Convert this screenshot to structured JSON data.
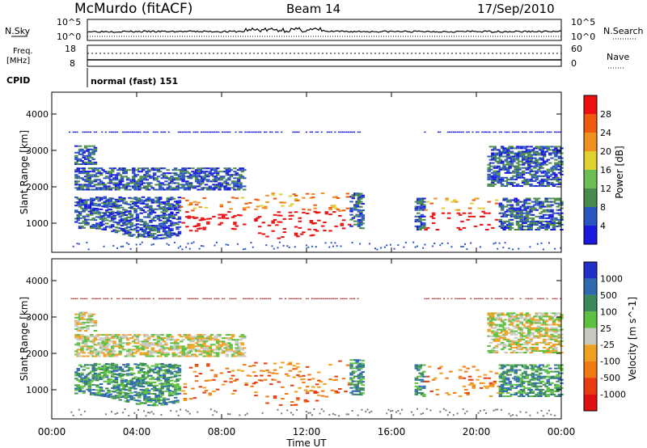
{
  "header": {
    "station": "McMurdo (fitACF)",
    "beam": "Beam 14",
    "date": "17/Sep/2010"
  },
  "status_panel": {
    "nsky_label": "N.Sky",
    "nsearch_label": "N.Search",
    "nsky_tick_high": "10^5",
    "nsky_tick_low": "10^0",
    "freq_label_line1": "Freq.",
    "freq_label_line2": "[MHz]",
    "freq_ticks": [
      "18",
      "8"
    ],
    "nave_label": "Nave",
    "nave_ticks": [
      "60",
      "0"
    ],
    "cpid_label": "CPID",
    "cpid_value": "normal (fast) 151"
  },
  "colors": {
    "power_scale": [
      "#1a1adf",
      "#2a55c0",
      "#4a8a4a",
      "#6bbf50",
      "#e0d030",
      "#f09020",
      "#f05a10",
      "#ee1010"
    ],
    "velocity_scale": [
      "#2030c8",
      "#2e6ab0",
      "#3c8a5a",
      "#5cc040",
      "#c8c8c0",
      "#f0a020",
      "#f07a10",
      "#e83c10",
      "#e01010"
    ]
  },
  "chart_data": [
    {
      "type": "heatmap",
      "title": "",
      "xlabel": "",
      "ylabel": "Slant Range [km]",
      "x_ticks": [
        "00:00",
        "04:00",
        "08:00",
        "12:00",
        "16:00",
        "20:00",
        "00:00"
      ],
      "y_ticks": [
        "1000",
        "2000",
        "3000",
        "4000"
      ],
      "ylim": [
        200,
        4600
      ],
      "colorbar": {
        "label": "Power [dB]",
        "ticks": [
          "4",
          "8",
          "12",
          "16",
          "20",
          "24",
          "28"
        ]
      }
    },
    {
      "type": "heatmap",
      "title": "",
      "xlabel": "Time UT",
      "ylabel": "Slant Range [km]",
      "x_ticks": [
        "00:00",
        "04:00",
        "08:00",
        "12:00",
        "16:00",
        "20:00",
        "00:00"
      ],
      "y_ticks": [
        "1000",
        "2000",
        "3000",
        "4000"
      ],
      "ylim": [
        200,
        4600
      ],
      "colorbar": {
        "label": "Velocity [m s^-1]",
        "ticks": [
          "1000",
          "500",
          "100",
          "25",
          "-25",
          "-100",
          "-500",
          "-1000"
        ]
      }
    }
  ]
}
